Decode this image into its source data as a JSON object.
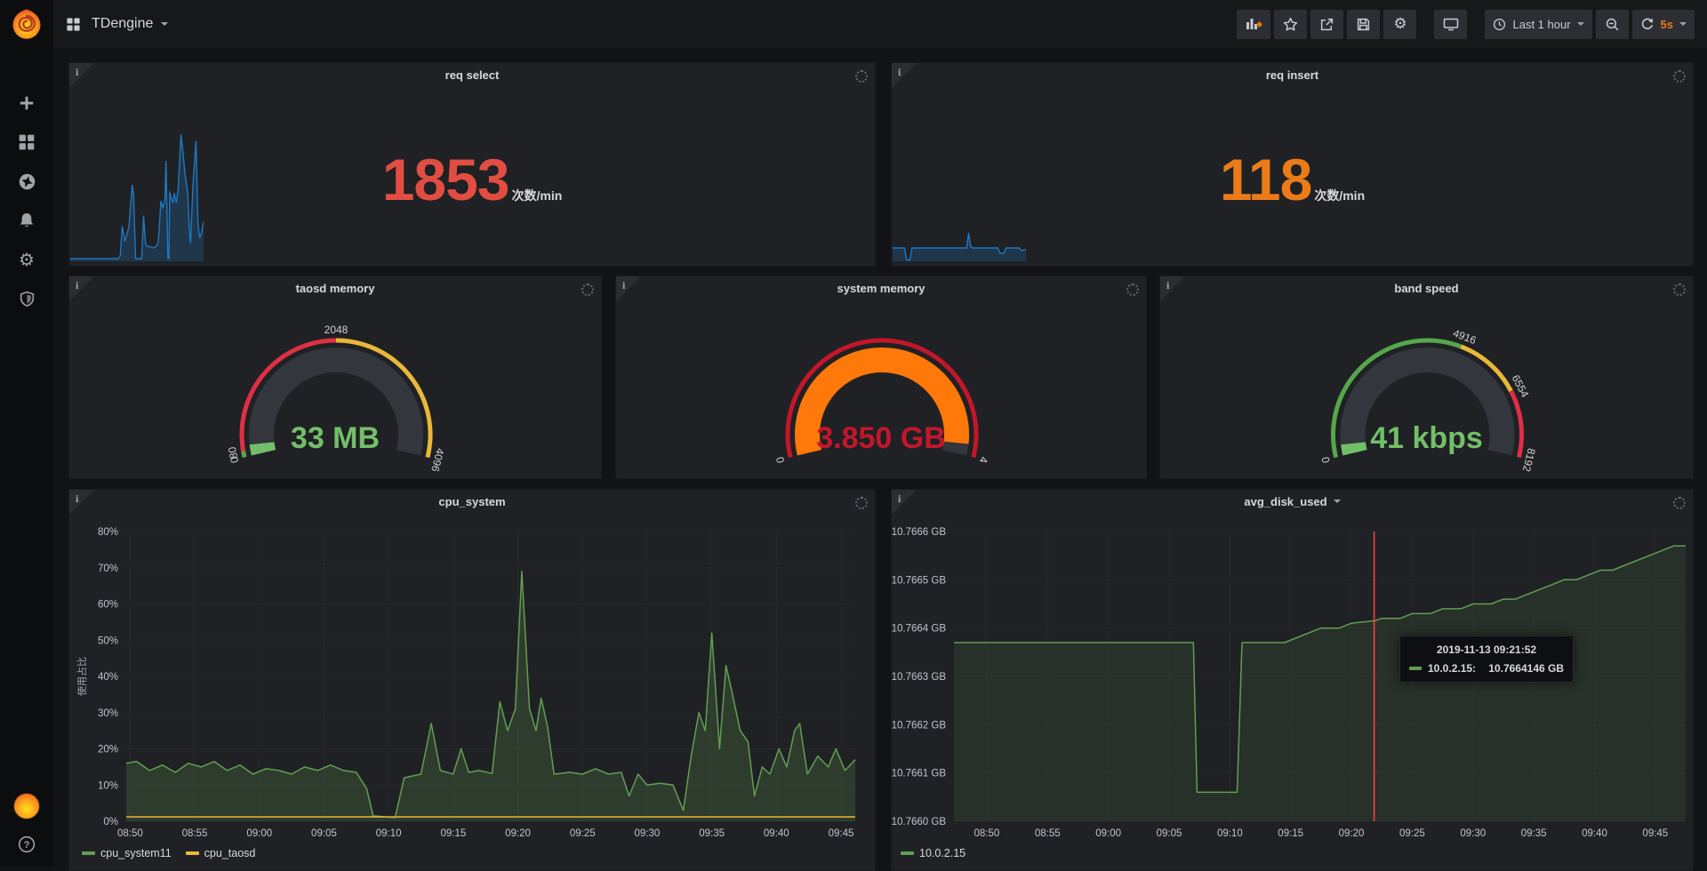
{
  "icons": {
    "info_glyph": "i",
    "help_glyph": "?",
    "gear_glyph": "⚙"
  },
  "navbar": {
    "dashboard_title": "TDengine",
    "buttons": {
      "time_range": "Last 1 hour",
      "refresh_interval": "5s"
    }
  },
  "panels": {
    "req_select": {
      "title": "req select",
      "stat": {
        "value": "1853",
        "unit": "次数/min",
        "color": "#e24d42"
      },
      "spark": {
        "line_color": "#1f78c1",
        "fill_color": "rgba(31,120,193,0.25)",
        "points": [
          [
            0,
            2
          ],
          [
            36,
            2
          ],
          [
            37.5,
            4
          ],
          [
            39,
            26
          ],
          [
            41,
            15
          ],
          [
            44,
            26
          ],
          [
            46.5,
            57
          ],
          [
            47.5,
            50
          ],
          [
            49,
            2
          ],
          [
            53.5,
            2
          ],
          [
            55,
            34
          ],
          [
            56.5,
            13
          ],
          [
            58,
            11
          ],
          [
            60,
            11
          ],
          [
            62,
            10
          ],
          [
            64,
            11
          ],
          [
            66,
            14
          ],
          [
            68,
            45
          ],
          [
            69.5,
            40
          ],
          [
            71,
            47
          ],
          [
            71.8,
            75
          ],
          [
            72.6,
            35
          ],
          [
            73.2,
            2
          ],
          [
            74,
            2
          ],
          [
            74.6,
            52
          ],
          [
            75.5,
            48
          ],
          [
            77,
            44
          ],
          [
            78,
            51
          ],
          [
            79.5,
            44
          ],
          [
            81,
            55
          ],
          [
            83,
            95
          ],
          [
            84.5,
            82
          ],
          [
            86,
            66
          ],
          [
            88,
            52
          ],
          [
            89.5,
            20
          ],
          [
            90.3,
            14
          ],
          [
            92,
            57
          ],
          [
            94.3,
            90
          ],
          [
            95.8,
            28
          ],
          [
            97,
            18
          ],
          [
            98.5,
            21
          ],
          [
            100,
            30
          ]
        ]
      }
    },
    "req_insert": {
      "title": "req insert",
      "stat": {
        "value": "118",
        "unit": "次数/min",
        "color": "#eb7b18"
      },
      "spark": {
        "line_color": "#1f78c1",
        "fill_color": "rgba(31,120,193,0.25)",
        "points": [
          [
            0,
            10
          ],
          [
            9,
            10
          ],
          [
            10.5,
            1
          ],
          [
            13,
            1
          ],
          [
            14.5,
            10
          ],
          [
            55.5,
            10
          ],
          [
            57,
            21
          ],
          [
            58.5,
            11
          ],
          [
            60,
            10
          ],
          [
            79,
            10
          ],
          [
            80.5,
            6
          ],
          [
            83.5,
            6
          ],
          [
            85,
            10
          ],
          [
            95,
            10
          ],
          [
            96.5,
            8
          ],
          [
            100,
            9
          ]
        ]
      }
    },
    "taosd_memory": {
      "title": "taosd memory",
      "gauge": {
        "value_text": "33 MB",
        "value_color": "#73bf69",
        "bar_color": "#73bf69",
        "min": 0,
        "max": 4096,
        "value": 33,
        "bands": [
          {
            "from": 0,
            "to": 80,
            "color": "#56a64b"
          },
          {
            "from": 80,
            "to": 2048,
            "color": "#e02f44"
          },
          {
            "from": 2048,
            "to": 4096,
            "color": "#eab839"
          }
        ],
        "labels": [
          {
            "text": "0",
            "at": 0
          },
          {
            "text": "80",
            "at": 80
          },
          {
            "text": "2048",
            "at": 2048
          },
          {
            "text": "4096",
            "at": 4096
          }
        ]
      }
    },
    "system_memory": {
      "title": "system memory",
      "gauge": {
        "value_text": "3.850 GB",
        "value_color": "#c4162a",
        "bar_color": "#ff780a",
        "min": 0,
        "max": 4,
        "value": 3.85,
        "bands": [
          {
            "from": 0,
            "to": 4,
            "color": "#c4162a"
          }
        ],
        "labels": [
          {
            "text": "0",
            "at": 0
          },
          {
            "text": "4",
            "at": 4
          }
        ]
      }
    },
    "band_speed": {
      "title": "band speed",
      "gauge": {
        "value_text": "41 kbps",
        "value_color": "#73bf69",
        "bar_color": "#73bf69",
        "min": 0,
        "max": 8192,
        "value": 41,
        "bands": [
          {
            "from": 0,
            "to": 4916,
            "color": "#56a64b"
          },
          {
            "from": 4916,
            "to": 6554,
            "color": "#eab839"
          },
          {
            "from": 6554,
            "to": 8192,
            "color": "#e02f44"
          }
        ],
        "labels": [
          {
            "text": "0",
            "at": 0
          },
          {
            "text": "4916",
            "at": 4916
          },
          {
            "text": "6554",
            "at": 6554
          },
          {
            "text": "8192",
            "at": 8192
          }
        ]
      }
    },
    "cpu_system": {
      "title": "cpu_system",
      "type": "line",
      "ylabel": "使用占比",
      "xmin": 1.7,
      "xmax": 58.1,
      "ymin": 0,
      "ymax": 80,
      "x_ticks": [
        {
          "m": 2,
          "label": "08:50"
        },
        {
          "m": 7,
          "label": "08:55"
        },
        {
          "m": 12,
          "label": "09:00"
        },
        {
          "m": 17,
          "label": "09:05"
        },
        {
          "m": 22,
          "label": "09:10"
        },
        {
          "m": 27,
          "label": "09:15"
        },
        {
          "m": 32,
          "label": "09:20"
        },
        {
          "m": 37,
          "label": "09:25"
        },
        {
          "m": 42,
          "label": "09:30"
        },
        {
          "m": 47,
          "label": "09:35"
        },
        {
          "m": 52,
          "label": "09:40"
        },
        {
          "m": 57,
          "label": "09:45"
        }
      ],
      "y_ticks": [
        {
          "v": 0,
          "label": "0%"
        },
        {
          "v": 10,
          "label": "10%"
        },
        {
          "v": 20,
          "label": "20%"
        },
        {
          "v": 30,
          "label": "30%"
        },
        {
          "v": 40,
          "label": "40%"
        },
        {
          "v": 50,
          "label": "50%"
        },
        {
          "v": 60,
          "label": "60%"
        },
        {
          "v": 70,
          "label": "70%"
        },
        {
          "v": 80,
          "label": "80%"
        }
      ],
      "series": [
        {
          "name": "cpu_system11",
          "color": "#629e51",
          "fill": "rgba(98,158,81,0.22)",
          "points": [
            [
              1.7,
              16
            ],
            [
              2.5,
              16.5
            ],
            [
              3.5,
              14
            ],
            [
              4.5,
              15.5
            ],
            [
              5.5,
              13.5
            ],
            [
              6.5,
              16
            ],
            [
              7.5,
              15
            ],
            [
              8.5,
              16.5
            ],
            [
              9.5,
              14
            ],
            [
              10.5,
              15.5
            ],
            [
              11.5,
              13
            ],
            [
              12.5,
              14.5
            ],
            [
              13.5,
              14
            ],
            [
              14.5,
              13
            ],
            [
              15.5,
              15
            ],
            [
              16.5,
              14
            ],
            [
              17.5,
              15.5
            ],
            [
              18.5,
              14
            ],
            [
              19.5,
              13.5
            ],
            [
              20.3,
              9
            ],
            [
              20.8,
              1.5
            ],
            [
              22.5,
              1
            ],
            [
              23.2,
              12
            ],
            [
              24.5,
              13
            ],
            [
              25.3,
              27
            ],
            [
              26,
              14
            ],
            [
              27,
              13
            ],
            [
              27.6,
              20
            ],
            [
              28.2,
              13.5
            ],
            [
              29,
              14
            ],
            [
              30,
              13.2
            ],
            [
              30.6,
              33
            ],
            [
              31.2,
              25
            ],
            [
              31.8,
              31
            ],
            [
              32.3,
              69
            ],
            [
              32.9,
              31
            ],
            [
              33.4,
              25
            ],
            [
              33.8,
              34
            ],
            [
              34.3,
              26
            ],
            [
              34.8,
              13
            ],
            [
              36,
              13.5
            ],
            [
              37,
              13
            ],
            [
              38,
              14.5
            ],
            [
              39,
              13
            ],
            [
              40,
              13.5
            ],
            [
              40.6,
              7
            ],
            [
              41.3,
              13
            ],
            [
              42,
              10
            ],
            [
              43,
              10.5
            ],
            [
              44,
              10
            ],
            [
              44.8,
              3
            ],
            [
              45.4,
              18
            ],
            [
              46,
              30
            ],
            [
              46.5,
              25
            ],
            [
              47,
              52
            ],
            [
              47.6,
              20
            ],
            [
              48.1,
              43
            ],
            [
              48.6,
              35
            ],
            [
              49.2,
              25
            ],
            [
              49.8,
              22
            ],
            [
              50.3,
              7
            ],
            [
              50.9,
              15
            ],
            [
              51.5,
              13
            ],
            [
              52.2,
              20
            ],
            [
              52.8,
              15
            ],
            [
              53.4,
              25
            ],
            [
              53.8,
              27
            ],
            [
              54.4,
              13
            ],
            [
              55.2,
              18
            ],
            [
              56,
              15
            ],
            [
              56.6,
              20
            ],
            [
              57.3,
              14
            ],
            [
              58.1,
              17
            ]
          ]
        },
        {
          "name": "cpu_taosd",
          "color": "#eab839",
          "fill": null,
          "points": [
            [
              1.7,
              1.2
            ],
            [
              58.1,
              1.2
            ]
          ]
        }
      ]
    },
    "avg_disk_used": {
      "title": "avg_disk_used",
      "type": "line",
      "xmin": -0.7,
      "xmax": 59.5,
      "ymin": 10.766,
      "ymax": 10.7666,
      "x_ticks": [
        {
          "m": 2,
          "label": "08:50"
        },
        {
          "m": 7,
          "label": "08:55"
        },
        {
          "m": 12,
          "label": "09:00"
        },
        {
          "m": 17,
          "label": "09:05"
        },
        {
          "m": 22,
          "label": "09:10"
        },
        {
          "m": 27,
          "label": "09:15"
        },
        {
          "m": 32,
          "label": "09:20"
        },
        {
          "m": 37,
          "label": "09:25"
        },
        {
          "m": 42,
          "label": "09:30"
        },
        {
          "m": 47,
          "label": "09:35"
        },
        {
          "m": 52,
          "label": "09:40"
        },
        {
          "m": 57,
          "label": "09:45"
        }
      ],
      "y_ticks": [
        {
          "v": 10.766,
          "label": "10.7660 GB"
        },
        {
          "v": 10.7661,
          "label": "10.7661 GB"
        },
        {
          "v": 10.7662,
          "label": "10.7662 GB"
        },
        {
          "v": 10.7663,
          "label": "10.7663 GB"
        },
        {
          "v": 10.7664,
          "label": "10.7664 GB"
        },
        {
          "v": 10.7665,
          "label": "10.7665 GB"
        },
        {
          "v": 10.7666,
          "label": "10.7666 GB"
        }
      ],
      "series": [
        {
          "name": "10.0.2.15",
          "color": "#629e51",
          "fill": "rgba(98,158,81,0.12)",
          "points": [
            [
              -0.7,
              10.76637
            ],
            [
              19,
              10.76637
            ],
            [
              19.3,
              10.76606
            ],
            [
              22.6,
              10.76606
            ],
            [
              23,
              10.76637
            ],
            [
              26.5,
              10.76637
            ],
            [
              27.5,
              10.76638
            ],
            [
              28.5,
              10.76639
            ],
            [
              29.5,
              10.7664
            ],
            [
              31,
              10.7664
            ],
            [
              32,
              10.76641
            ],
            [
              33.9,
              10.766415
            ],
            [
              34.5,
              10.76642
            ],
            [
              36,
              10.76642
            ],
            [
              37,
              10.76643
            ],
            [
              38.5,
              10.76643
            ],
            [
              39.5,
              10.76644
            ],
            [
              41,
              10.76644
            ],
            [
              42,
              10.76645
            ],
            [
              43.5,
              10.76645
            ],
            [
              44.5,
              10.76646
            ],
            [
              45.5,
              10.76646
            ],
            [
              46.5,
              10.76647
            ],
            [
              47.5,
              10.76648
            ],
            [
              48.5,
              10.76649
            ],
            [
              49.5,
              10.7665
            ],
            [
              50.5,
              10.7665
            ],
            [
              51.5,
              10.76651
            ],
            [
              52.5,
              10.76652
            ],
            [
              53.5,
              10.76652
            ],
            [
              54.5,
              10.76653
            ],
            [
              55.5,
              10.76654
            ],
            [
              56.5,
              10.76655
            ],
            [
              57.5,
              10.76656
            ],
            [
              58.5,
              10.76657
            ],
            [
              59.5,
              10.76657
            ]
          ]
        }
      ],
      "cursor": {
        "m": 33.87,
        "color": "#ff4343"
      },
      "tooltip": {
        "time": "2019-11-13 09:21:52",
        "name": "10.0.2.15:",
        "value": "10.7664146 GB",
        "color": "#629e51"
      }
    }
  }
}
